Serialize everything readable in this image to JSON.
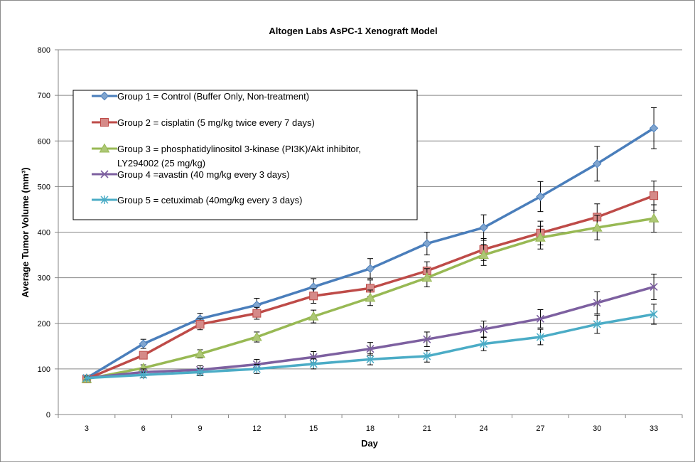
{
  "chart_data": {
    "type": "line",
    "title": "Altogen Labs AsPC-1 Xenograft Model",
    "xlabel": "Day",
    "ylabel": "Average Tumor Volume (mm³)",
    "x": [
      3,
      6,
      9,
      12,
      15,
      18,
      21,
      24,
      27,
      30,
      33
    ],
    "ylim": [
      0,
      800
    ],
    "yticks": [
      0,
      100,
      200,
      300,
      400,
      500,
      600,
      700,
      800
    ],
    "grid": "horizontal",
    "legend_position": "upper-left inside",
    "series": [
      {
        "name": "Group 1 = Control (Buffer Only, Non-treatment)",
        "color": "#4a7ebb",
        "marker": "diamond",
        "values": [
          80,
          155,
          210,
          240,
          280,
          320,
          375,
          410,
          478,
          550,
          628
        ],
        "errors": [
          4,
          10,
          12,
          15,
          18,
          22,
          25,
          28,
          33,
          38,
          45
        ]
      },
      {
        "name": "Group 2 = cisplatin (5 mg/kg twice every 7 days)",
        "color": "#be4b48",
        "marker": "square",
        "values": [
          78,
          130,
          198,
          222,
          260,
          277,
          315,
          362,
          398,
          433,
          480
        ],
        "errors": [
          4,
          8,
          12,
          13,
          16,
          18,
          20,
          24,
          26,
          29,
          32
        ]
      },
      {
        "name_lines": [
          "Group 3 =  phosphatidylinositol  3-kinase (PI3K)/Akt inhibitor,",
          "LY294002 (25 mg/kg)"
        ],
        "color": "#98b954",
        "marker": "triangle",
        "values": [
          78,
          102,
          133,
          170,
          215,
          256,
          300,
          350,
          388,
          410,
          430
        ],
        "errors": [
          4,
          7,
          9,
          11,
          14,
          17,
          20,
          23,
          25,
          27,
          30
        ]
      },
      {
        "name": "Group 4 =avastin (40 mg/kg every 3 days)",
        "color": "#7d60a0",
        "marker": "x",
        "values": [
          80,
          93,
          98,
          110,
          126,
          144,
          165,
          187,
          210,
          245,
          280
        ],
        "errors": [
          4,
          7,
          9,
          11,
          12,
          14,
          16,
          18,
          20,
          24,
          28
        ]
      },
      {
        "name": "Group 5 = cetuximab (40mg/kg every 3 days)",
        "color": "#4bacc6",
        "marker": "star",
        "values": [
          80,
          87,
          93,
          100,
          111,
          121,
          128,
          155,
          170,
          198,
          220
        ],
        "errors": [
          4,
          6,
          8,
          10,
          11,
          12,
          13,
          15,
          17,
          20,
          22
        ]
      }
    ]
  }
}
